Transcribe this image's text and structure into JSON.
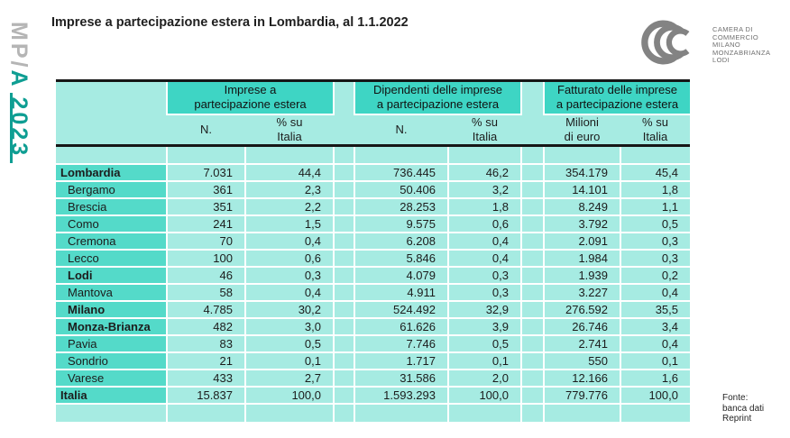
{
  "brand": {
    "prefix": "MP/",
    "suffix": "A 2023"
  },
  "title": "Imprese a partecipazione estera in Lombardia, al 1.1.2022",
  "logo": {
    "name_lines": [
      "CAMERA DI",
      "COMMERCIO",
      "MILANO",
      "MONZABRIANZA",
      "LODI"
    ]
  },
  "table": {
    "groups": [
      {
        "title_lines": [
          "Imprese a",
          "partecipazione estera"
        ],
        "col1_lines": [
          "N."
        ],
        "col2_lines": [
          "% su",
          "Italia"
        ]
      },
      {
        "title_lines": [
          "Dipendenti delle imprese",
          "a partecipazione estera"
        ],
        "col1_lines": [
          "N."
        ],
        "col2_lines": [
          "% su",
          "Italia"
        ]
      },
      {
        "title_lines": [
          "Fatturato delle imprese",
          "a partecipazione estera"
        ],
        "col1_lines": [
          "Milioni",
          "di euro"
        ],
        "col2_lines": [
          "% su",
          "Italia"
        ]
      }
    ],
    "rows": [
      {
        "name": "Lombardia",
        "bold": true,
        "indent": false,
        "values": [
          "7.031",
          "44,4",
          "736.445",
          "46,2",
          "354.179",
          "45,4"
        ]
      },
      {
        "name": "Bergamo",
        "bold": false,
        "indent": true,
        "values": [
          "361",
          "2,3",
          "50.406",
          "3,2",
          "14.101",
          "1,8"
        ]
      },
      {
        "name": "Brescia",
        "bold": false,
        "indent": true,
        "values": [
          "351",
          "2,2",
          "28.253",
          "1,8",
          "8.249",
          "1,1"
        ]
      },
      {
        "name": "Como",
        "bold": false,
        "indent": true,
        "values": [
          "241",
          "1,5",
          "9.575",
          "0,6",
          "3.792",
          "0,5"
        ]
      },
      {
        "name": "Cremona",
        "bold": false,
        "indent": true,
        "values": [
          "70",
          "0,4",
          "6.208",
          "0,4",
          "2.091",
          "0,3"
        ]
      },
      {
        "name": "Lecco",
        "bold": false,
        "indent": true,
        "values": [
          "100",
          "0,6",
          "5.846",
          "0,4",
          "1.984",
          "0,3"
        ]
      },
      {
        "name": "Lodi",
        "bold": true,
        "indent": true,
        "values": [
          "46",
          "0,3",
          "4.079",
          "0,3",
          "1.939",
          "0,2"
        ]
      },
      {
        "name": "Mantova",
        "bold": false,
        "indent": true,
        "values": [
          "58",
          "0,4",
          "4.911",
          "0,3",
          "3.227",
          "0,4"
        ]
      },
      {
        "name": "Milano",
        "bold": true,
        "indent": true,
        "values": [
          "4.785",
          "30,2",
          "524.492",
          "32,9",
          "276.592",
          "35,5"
        ]
      },
      {
        "name": "Monza-Brianza",
        "bold": true,
        "indent": true,
        "values": [
          "482",
          "3,0",
          "61.626",
          "3,9",
          "26.746",
          "3,4"
        ]
      },
      {
        "name": "Pavia",
        "bold": false,
        "indent": true,
        "values": [
          "83",
          "0,5",
          "7.746",
          "0,5",
          "2.741",
          "0,4"
        ]
      },
      {
        "name": "Sondrio",
        "bold": false,
        "indent": true,
        "values": [
          "21",
          "0,1",
          "1.717",
          "0,1",
          "550",
          "0,1"
        ]
      },
      {
        "name": "Varese",
        "bold": false,
        "indent": true,
        "values": [
          "433",
          "2,7",
          "31.586",
          "2,0",
          "12.166",
          "1,6"
        ]
      },
      {
        "name": "Italia",
        "bold": true,
        "indent": false,
        "values": [
          "15.837",
          "100,0",
          "1.593.293",
          "100,0",
          "779.776",
          "100,0"
        ]
      }
    ]
  },
  "source": {
    "lines": [
      "Fonte:",
      "banca dati",
      "Reprint"
    ]
  },
  "colors": {
    "band": "#3ed5c4",
    "name_col": "#54dac9",
    "cell": "#a6ebe2",
    "brand_teal": "#0f9e93",
    "dark_line": "#161616",
    "logo_gray": "#838383"
  }
}
